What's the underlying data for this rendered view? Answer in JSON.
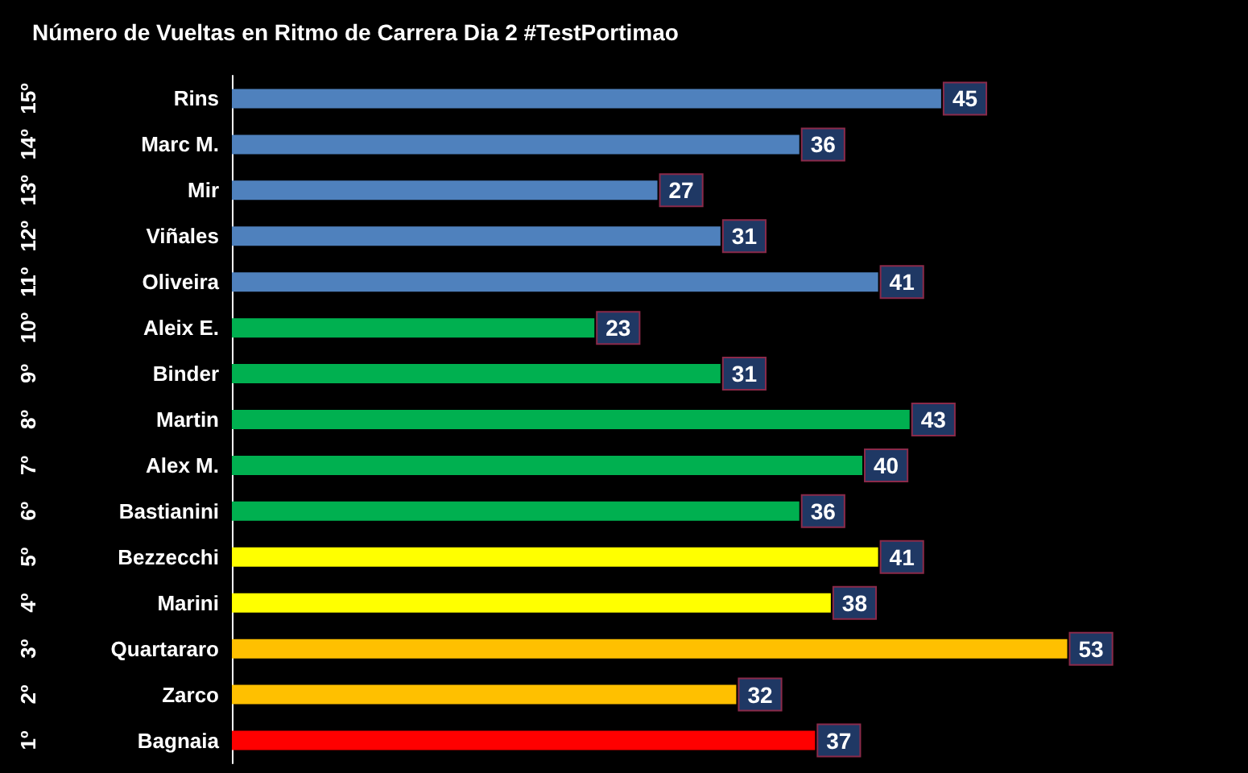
{
  "chart_data": {
    "type": "bar",
    "orientation": "horizontal",
    "title": "Número de Vueltas en Ritmo de Carrera Dia 2 #TestPortimao",
    "categories": [
      "Rins",
      "Marc M.",
      "Mir",
      "Viñales",
      "Oliveira",
      "Aleix E.",
      "Binder",
      "Martin",
      "Alex M.",
      "Bastianini",
      "Bezzecchi",
      "Marini",
      "Quartararo",
      "Zarco",
      "Bagnaia"
    ],
    "values": [
      45,
      36,
      27,
      31,
      41,
      23,
      31,
      43,
      40,
      36,
      41,
      38,
      53,
      32,
      37
    ],
    "colors": [
      "#4f81bd",
      "#4f81bd",
      "#4f81bd",
      "#4f81bd",
      "#4f81bd",
      "#00b050",
      "#00b050",
      "#00b050",
      "#00b050",
      "#00b050",
      "#ffff00",
      "#ffff00",
      "#ffc000",
      "#ffc000",
      "#ff0000"
    ],
    "annotations": [
      "15º",
      "14º",
      "13º",
      "12º",
      "11º",
      "10º",
      "9º",
      "8º",
      "7º",
      "6º",
      "5º",
      "4º",
      "3º",
      "2º",
      "1º"
    ],
    "data_labels": true
  }
}
